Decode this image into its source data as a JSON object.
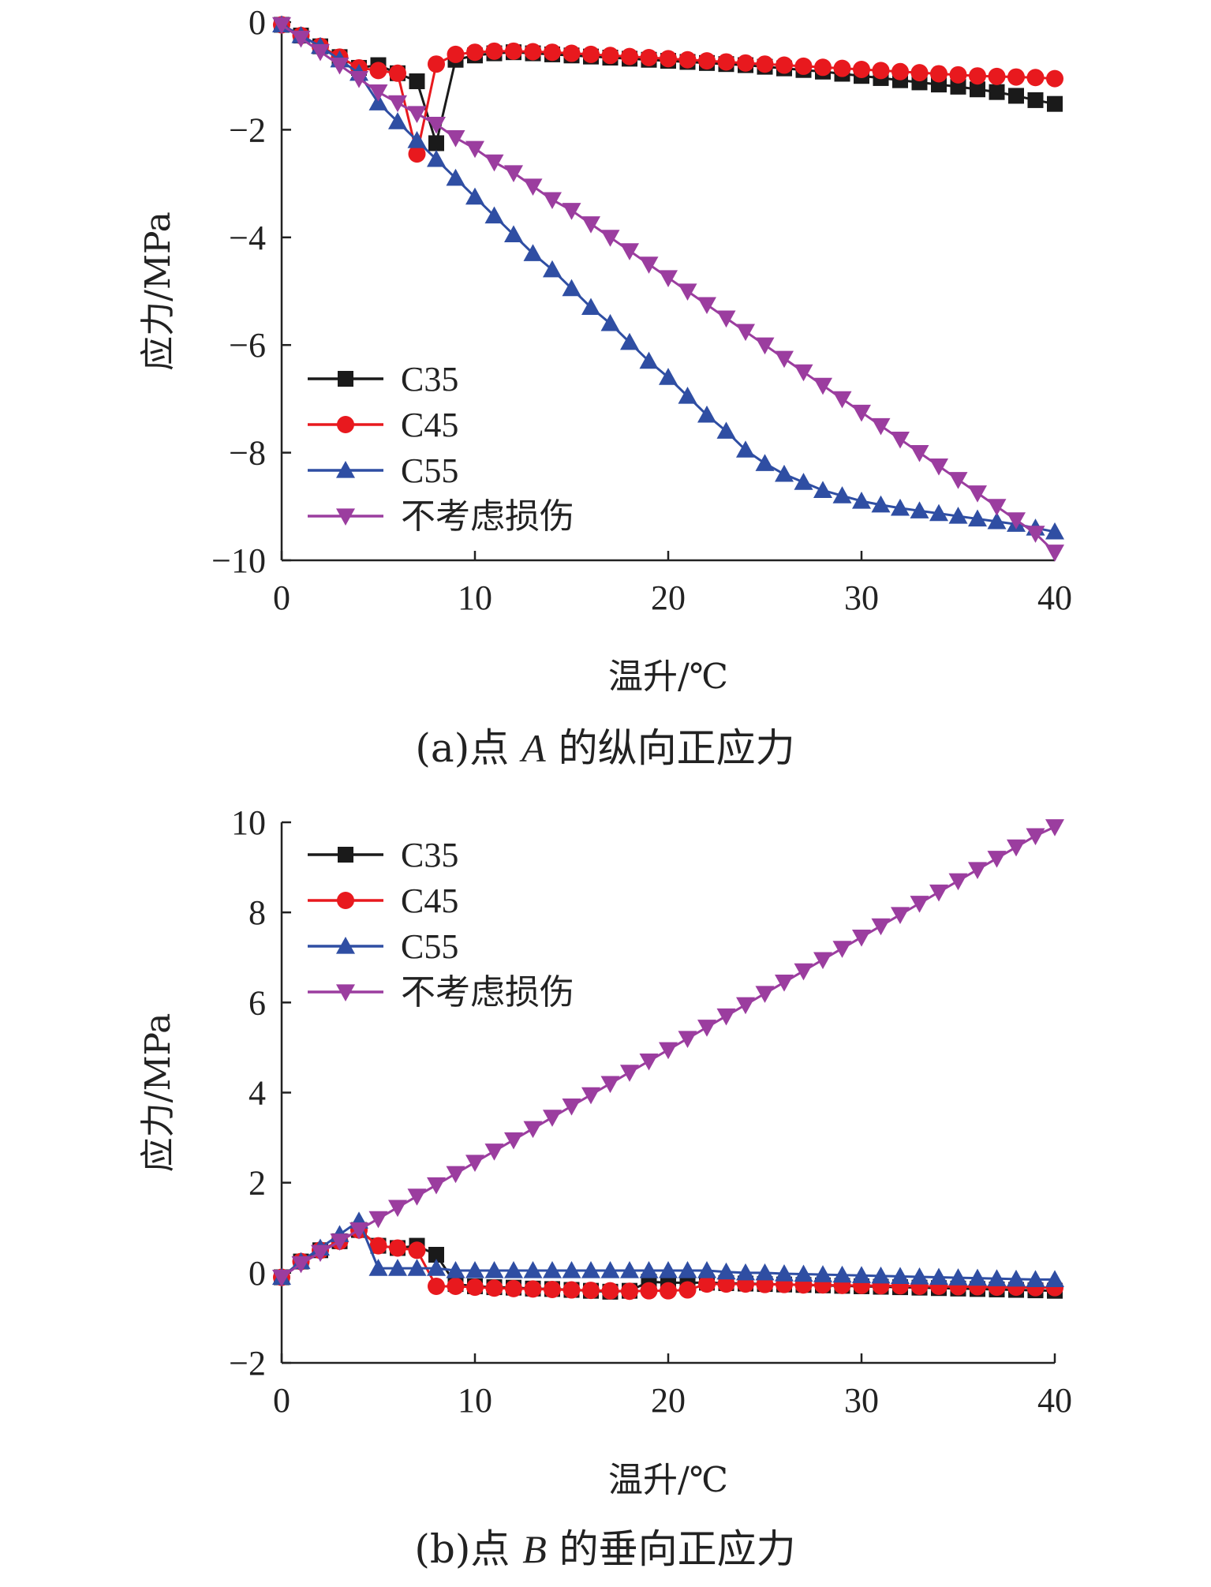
{
  "chart_data": [
    {
      "type": "line",
      "caption_prefix": "(a)点 ",
      "caption_point": "A",
      "caption_suffix": " 的纵向正应力",
      "xlabel": "温升/℃",
      "ylabel": "应力/MPa",
      "xlim": [
        0,
        40
      ],
      "ylim": [
        -10,
        0
      ],
      "xticks": [
        0,
        10,
        20,
        30,
        40
      ],
      "yticks": [
        0,
        -2,
        -4,
        -6,
        -8,
        -10
      ],
      "ytick_labels": [
        "0",
        "−2",
        "−4",
        "−6",
        "−8",
        "−10"
      ],
      "xtick_labels": [
        "0",
        "10",
        "20",
        "30",
        "40"
      ],
      "legend_position": "lower-left",
      "x": [
        0,
        1,
        2,
        3,
        4,
        5,
        6,
        7,
        8,
        9,
        10,
        11,
        12,
        13,
        14,
        15,
        16,
        17,
        18,
        19,
        20,
        21,
        22,
        23,
        24,
        25,
        26,
        27,
        28,
        29,
        30,
        31,
        32,
        33,
        34,
        35,
        36,
        37,
        38,
        39,
        40
      ],
      "series": [
        {
          "name": "C35",
          "color": "#1a1a1a",
          "marker": "square",
          "values": [
            -0.05,
            -0.25,
            -0.45,
            -0.65,
            -0.85,
            -0.8,
            -0.95,
            -1.1,
            -2.25,
            -0.7,
            -0.62,
            -0.58,
            -0.56,
            -0.58,
            -0.6,
            -0.62,
            -0.64,
            -0.66,
            -0.68,
            -0.7,
            -0.72,
            -0.74,
            -0.76,
            -0.78,
            -0.8,
            -0.83,
            -0.86,
            -0.89,
            -0.92,
            -0.96,
            -1.0,
            -1.04,
            -1.08,
            -1.12,
            -1.16,
            -1.2,
            -1.25,
            -1.3,
            -1.37,
            -1.45,
            -1.52
          ]
        },
        {
          "name": "C45",
          "color": "#e8191e",
          "marker": "circle",
          "values": [
            -0.05,
            -0.25,
            -0.45,
            -0.65,
            -0.85,
            -0.9,
            -0.95,
            -2.45,
            -0.78,
            -0.6,
            -0.56,
            -0.54,
            -0.54,
            -0.55,
            -0.56,
            -0.58,
            -0.6,
            -0.62,
            -0.64,
            -0.66,
            -0.68,
            -0.7,
            -0.72,
            -0.74,
            -0.76,
            -0.78,
            -0.8,
            -0.82,
            -0.84,
            -0.86,
            -0.88,
            -0.9,
            -0.92,
            -0.94,
            -0.96,
            -0.98,
            -1.0,
            -1.01,
            -1.02,
            -1.03,
            -1.05
          ]
        },
        {
          "name": "C55",
          "color": "#2f4ea3",
          "marker": "triangle-up",
          "values": [
            -0.05,
            -0.25,
            -0.45,
            -0.7,
            -0.95,
            -1.5,
            -1.85,
            -2.2,
            -2.55,
            -2.9,
            -3.25,
            -3.6,
            -3.95,
            -4.3,
            -4.6,
            -4.95,
            -5.3,
            -5.6,
            -5.95,
            -6.3,
            -6.6,
            -6.95,
            -7.3,
            -7.6,
            -7.95,
            -8.2,
            -8.4,
            -8.55,
            -8.7,
            -8.8,
            -8.9,
            -8.97,
            -9.03,
            -9.08,
            -9.13,
            -9.18,
            -9.23,
            -9.28,
            -9.33,
            -9.4,
            -9.47
          ]
        },
        {
          "name": "不考虑损伤",
          "color": "#9b3d9f",
          "marker": "triangle-down",
          "values": [
            -0.05,
            -0.3,
            -0.55,
            -0.8,
            -1.05,
            -1.3,
            -1.5,
            -1.7,
            -1.9,
            -2.15,
            -2.35,
            -2.6,
            -2.8,
            -3.05,
            -3.3,
            -3.5,
            -3.75,
            -4.0,
            -4.25,
            -4.5,
            -4.75,
            -5.0,
            -5.25,
            -5.5,
            -5.75,
            -6.0,
            -6.25,
            -6.5,
            -6.75,
            -7.0,
            -7.25,
            -7.5,
            -7.75,
            -8.0,
            -8.25,
            -8.5,
            -8.75,
            -9.0,
            -9.25,
            -9.5,
            -9.85
          ]
        }
      ]
    },
    {
      "type": "line",
      "caption_prefix": "(b)点 ",
      "caption_point": "B",
      "caption_suffix": " 的垂向正应力",
      "xlabel": "温升/℃",
      "ylabel": "应力/MPa",
      "xlim": [
        0,
        40
      ],
      "ylim": [
        -2,
        10
      ],
      "xticks": [
        0,
        10,
        20,
        30,
        40
      ],
      "yticks": [
        10,
        8,
        6,
        4,
        2,
        0,
        -2
      ],
      "ytick_labels": [
        "10",
        "8",
        "6",
        "4",
        "2",
        "0",
        "−2"
      ],
      "xtick_labels": [
        "0",
        "10",
        "20",
        "30",
        "40"
      ],
      "legend_position": "top-left",
      "x": [
        0,
        1,
        2,
        3,
        4,
        5,
        6,
        7,
        8,
        9,
        10,
        11,
        12,
        13,
        14,
        15,
        16,
        17,
        18,
        19,
        20,
        21,
        22,
        23,
        24,
        25,
        26,
        27,
        28,
        29,
        30,
        31,
        32,
        33,
        34,
        35,
        36,
        37,
        38,
        39,
        40
      ],
      "series": [
        {
          "name": "C35",
          "color": "#1a1a1a",
          "marker": "square",
          "values": [
            -0.1,
            0.25,
            0.5,
            0.7,
            0.95,
            0.6,
            0.55,
            0.6,
            0.4,
            -0.25,
            -0.3,
            -0.32,
            -0.33,
            -0.35,
            -0.36,
            -0.38,
            -0.4,
            -0.42,
            -0.4,
            -0.2,
            -0.22,
            -0.22,
            -0.22,
            -0.23,
            -0.24,
            -0.25,
            -0.26,
            -0.27,
            -0.28,
            -0.29,
            -0.3,
            -0.31,
            -0.32,
            -0.33,
            -0.34,
            -0.35,
            -0.36,
            -0.37,
            -0.38,
            -0.39,
            -0.4
          ]
        },
        {
          "name": "C45",
          "color": "#e8191e",
          "marker": "circle",
          "values": [
            -0.1,
            0.25,
            0.5,
            0.7,
            0.95,
            0.6,
            0.55,
            0.5,
            -0.3,
            -0.3,
            -0.32,
            -0.34,
            -0.35,
            -0.36,
            -0.37,
            -0.38,
            -0.39,
            -0.4,
            -0.41,
            -0.4,
            -0.4,
            -0.38,
            -0.25,
            -0.25,
            -0.25,
            -0.26,
            -0.26,
            -0.27,
            -0.27,
            -0.28,
            -0.28,
            -0.29,
            -0.29,
            -0.3,
            -0.3,
            -0.31,
            -0.31,
            -0.32,
            -0.32,
            -0.33,
            -0.33
          ]
        },
        {
          "name": "C55",
          "color": "#2f4ea3",
          "marker": "triangle-up",
          "values": [
            -0.1,
            0.25,
            0.55,
            0.85,
            1.15,
            0.1,
            0.1,
            0.1,
            0.1,
            0.05,
            0.05,
            0.05,
            0.05,
            0.05,
            0.05,
            0.05,
            0.05,
            0.05,
            0.05,
            0.05,
            0.05,
            0.05,
            0.05,
            0.02,
            0.0,
            0.0,
            -0.02,
            -0.03,
            -0.04,
            -0.05,
            -0.06,
            -0.07,
            -0.08,
            -0.09,
            -0.1,
            -0.11,
            -0.12,
            -0.13,
            -0.14,
            -0.15,
            -0.15
          ]
        },
        {
          "name": "不考虑损伤",
          "color": "#9b3d9f",
          "marker": "triangle-down",
          "values": [
            -0.1,
            0.2,
            0.45,
            0.7,
            0.95,
            1.2,
            1.45,
            1.7,
            1.95,
            2.2,
            2.45,
            2.7,
            2.95,
            3.2,
            3.45,
            3.7,
            3.95,
            4.2,
            4.45,
            4.7,
            4.95,
            5.2,
            5.45,
            5.7,
            5.95,
            6.2,
            6.45,
            6.7,
            6.95,
            7.2,
            7.45,
            7.7,
            7.95,
            8.2,
            8.45,
            8.7,
            8.95,
            9.2,
            9.45,
            9.7,
            9.9
          ]
        }
      ]
    }
  ]
}
